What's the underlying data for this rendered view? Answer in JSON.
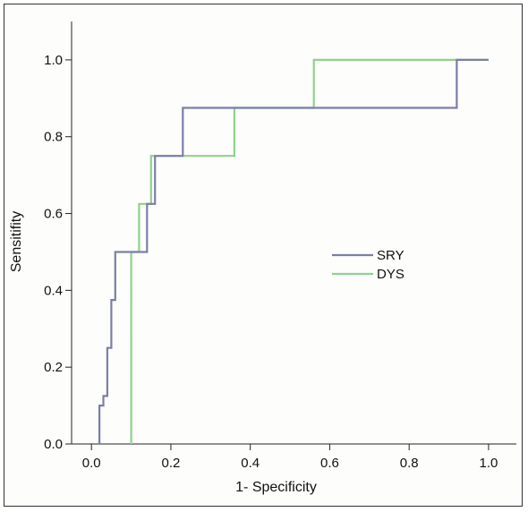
{
  "chart_data": {
    "type": "line",
    "title": "",
    "xlabel": "1- Specificity",
    "ylabel": "Sensitifity",
    "xlim": [
      -0.05,
      1.07
    ],
    "ylim": [
      0,
      1.1
    ],
    "xticks": [
      0.0,
      0.2,
      0.4,
      0.6,
      0.8,
      1.0
    ],
    "xtick_labels": [
      "0.0",
      "0.2",
      "0.4",
      "0.6",
      "0.8",
      "1.0"
    ],
    "yticks": [
      0.0,
      0.2,
      0.4,
      0.6,
      0.8,
      1.0
    ],
    "ytick_labels": [
      "0.0",
      "0.2",
      "0.4",
      "0.6",
      "0.8",
      "1.0"
    ],
    "grid": false,
    "legend_position": "center-right",
    "series": [
      {
        "name": "SRY",
        "color": "#7b7fa6",
        "x": [
          0.02,
          0.02,
          0.03,
          0.03,
          0.04,
          0.04,
          0.05,
          0.05,
          0.06,
          0.06,
          0.14,
          0.14,
          0.16,
          0.16,
          0.23,
          0.23,
          0.92,
          0.92,
          1.0
        ],
        "y": [
          0.0,
          0.1,
          0.1,
          0.125,
          0.125,
          0.25,
          0.25,
          0.375,
          0.375,
          0.5,
          0.5,
          0.625,
          0.625,
          0.75,
          0.75,
          0.875,
          0.875,
          1.0,
          1.0
        ]
      },
      {
        "name": "DYS",
        "color": "#8fd18c",
        "x": [
          0.1,
          0.1,
          0.12,
          0.12,
          0.15,
          0.15,
          0.17,
          0.17,
          0.36,
          0.36,
          0.56,
          0.56,
          1.0
        ],
        "y": [
          0.0,
          0.5,
          0.5,
          0.625,
          0.625,
          0.75,
          0.75,
          0.75,
          0.75,
          0.875,
          0.875,
          1.0,
          1.0
        ]
      }
    ]
  }
}
